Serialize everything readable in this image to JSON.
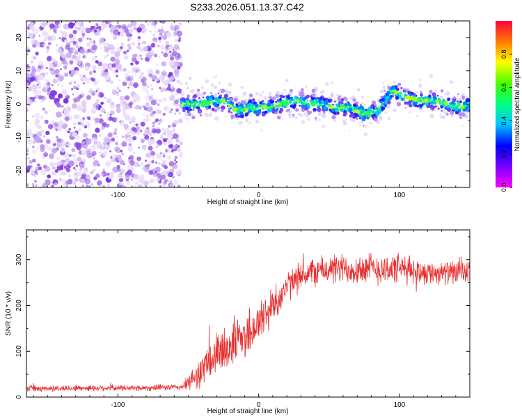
{
  "title": "S233.2026.051.13.37.C42",
  "colors": {
    "snr_line": "#e83030",
    "frame": "#000000",
    "background": "#ffffff"
  },
  "chart_data": [
    {
      "type": "heatmap",
      "name": "spectrogram",
      "xlabel": "Height of straight line (km)",
      "ylabel": "Frequency (Hz)",
      "xlim": [
        -165,
        150
      ],
      "ylim": [
        -25,
        25
      ],
      "x_ticks": [
        -100,
        0,
        100
      ],
      "y_ticks": [
        -20,
        -10,
        0,
        10,
        20
      ],
      "noise_region_x": [
        -165,
        -55
      ],
      "signal_region_x": [
        -55,
        150
      ],
      "signal_track": {
        "x": [
          -55,
          -45,
          -35,
          -25,
          -15,
          -5,
          5,
          15,
          25,
          35,
          45,
          55,
          65,
          75,
          85,
          95,
          105,
          115,
          125,
          135,
          145,
          150
        ],
        "frequency_hz": [
          0,
          0,
          0.5,
          1,
          -2,
          -1,
          -1,
          0,
          1,
          0.5,
          0,
          -1,
          -1,
          -3,
          -2,
          4,
          2,
          1,
          1,
          0,
          -1,
          0
        ]
      },
      "colorbar": {
        "label": "Normalized spectral amplitude",
        "range": [
          0,
          1
        ],
        "ticks": [
          0.0,
          0.2,
          0.4,
          0.6,
          0.8
        ]
      }
    },
    {
      "type": "line",
      "name": "snr",
      "xlabel": "Height of straight line (km)",
      "ylabel": "SNR (10 * v/v)",
      "xlim": [
        -165,
        150
      ],
      "ylim": [
        0,
        365
      ],
      "x_ticks": [
        -100,
        0,
        100
      ],
      "y_ticks": [
        0,
        100,
        200,
        300
      ],
      "series": [
        {
          "name": "SNR",
          "envelope_x": [
            -165,
            -120,
            -80,
            -55,
            -50,
            -40,
            -30,
            -20,
            -10,
            0,
            10,
            20,
            30,
            40,
            60,
            80,
            100,
            120,
            150
          ],
          "envelope_mean": [
            18,
            20,
            20,
            22,
            30,
            60,
            90,
            115,
            135,
            160,
            200,
            240,
            265,
            275,
            280,
            280,
            280,
            272,
            272
          ],
          "envelope_spread": [
            8,
            8,
            8,
            8,
            20,
            45,
            60,
            60,
            65,
            60,
            50,
            40,
            38,
            38,
            40,
            42,
            40,
            30,
            30
          ]
        }
      ]
    }
  ]
}
